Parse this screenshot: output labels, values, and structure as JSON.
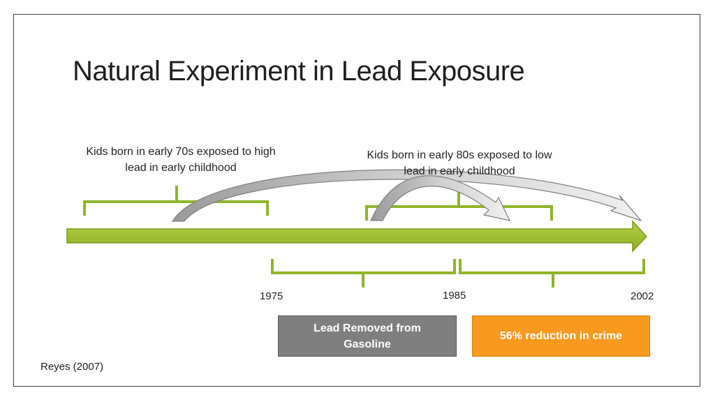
{
  "slide": {
    "title": "Natural Experiment in Lead Exposure",
    "caption_1970s": "Kids born in early 70s exposed to high lead in early childhood",
    "caption_1980s": "Kids born in early 80s exposed to low lead in early childhood",
    "years": [
      "1975",
      "1985",
      "2002"
    ],
    "box_lead": "Lead Removed from Gasoline",
    "box_crime": "56% reduction in crime",
    "source": "Reyes (2007)"
  },
  "colors": {
    "timeline_green": "#9bbb2d",
    "bracket_green": "#8fb52a",
    "arrow_grey": "#bfbfbf",
    "box_grey": "#7f7f7f",
    "box_orange": "#f79a1f"
  }
}
